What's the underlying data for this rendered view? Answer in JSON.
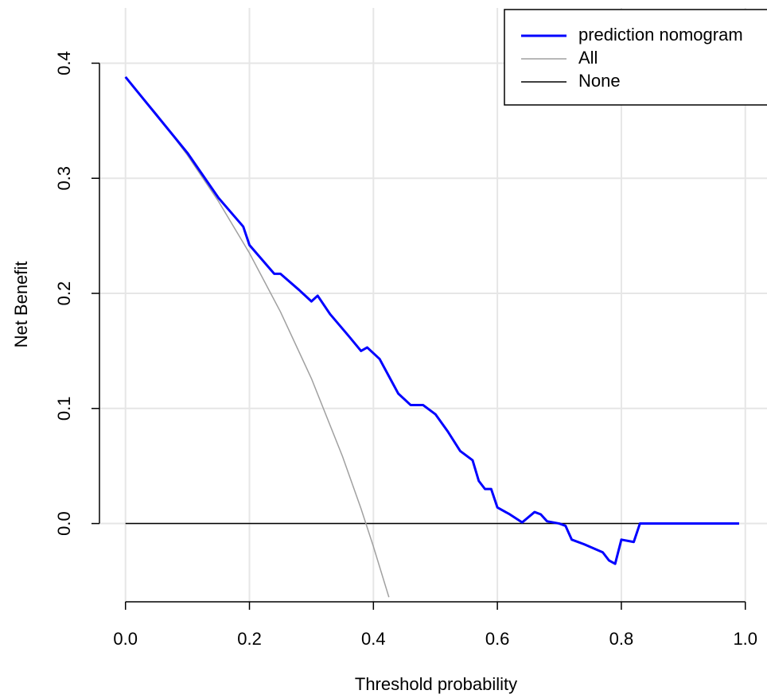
{
  "chart_data": {
    "type": "line",
    "x_label": "Threshold probability",
    "y_label": "Net Benefit",
    "xlim": [
      -0.042,
      1.035
    ],
    "ylim": [
      -0.068,
      0.448
    ],
    "xticks": [
      {
        "value": 0,
        "label": "0.0"
      },
      0.2,
      0.4,
      0.6,
      0.8,
      {
        "value": 1,
        "label": "1.0"
      }
    ],
    "yticks": [
      {
        "value": 0,
        "label": "0.0"
      },
      0.1,
      0.2,
      0.3,
      0.4
    ],
    "grid": true,
    "legend": "topright",
    "series": [
      {
        "name": "prediction nomogram",
        "color": "#0000ff",
        "x": [
          0,
          0.05,
          0.1,
          0.15,
          0.19,
          0.2,
          0.24,
          0.25,
          0.28,
          0.3,
          0.31,
          0.33,
          0.36,
          0.38,
          0.39,
          0.41,
          0.43,
          0.44,
          0.46,
          0.48,
          0.5,
          0.52,
          0.54,
          0.56,
          0.57,
          0.58,
          0.59,
          0.6,
          0.62,
          0.64,
          0.66,
          0.67,
          0.68,
          0.7,
          0.71,
          0.72,
          0.74,
          0.77,
          0.78,
          0.79,
          0.8,
          0.82,
          0.83,
          0.99
        ],
        "values": [
          0.388,
          0.355,
          0.322,
          0.283,
          0.258,
          0.242,
          0.217,
          0.217,
          0.203,
          0.193,
          0.198,
          0.182,
          0.163,
          0.15,
          0.153,
          0.143,
          0.123,
          0.113,
          0.103,
          0.103,
          0.095,
          0.08,
          0.063,
          0.055,
          0.037,
          0.03,
          0.03,
          0.014,
          0.008,
          0.001,
          0.01,
          0.008,
          0.002,
          0,
          -0.002,
          -0.014,
          -0.018,
          -0.025,
          -0.032,
          -0.035,
          -0.014,
          -0.016,
          0,
          0
        ]
      },
      {
        "name": "All",
        "color": "#a0a0a0",
        "x": [
          0,
          0.05,
          0.1,
          0.15,
          0.2,
          0.25,
          0.3,
          0.35,
          0.38,
          0.4,
          0.425
        ],
        "values": [
          0.388,
          0.356,
          0.32,
          0.28,
          0.235,
          0.184,
          0.126,
          0.0585,
          0.013,
          -0.02,
          -0.064
        ]
      },
      {
        "name": "None",
        "color": "#000000",
        "x": [
          0,
          0.99
        ],
        "values": [
          0,
          0
        ]
      }
    ]
  }
}
